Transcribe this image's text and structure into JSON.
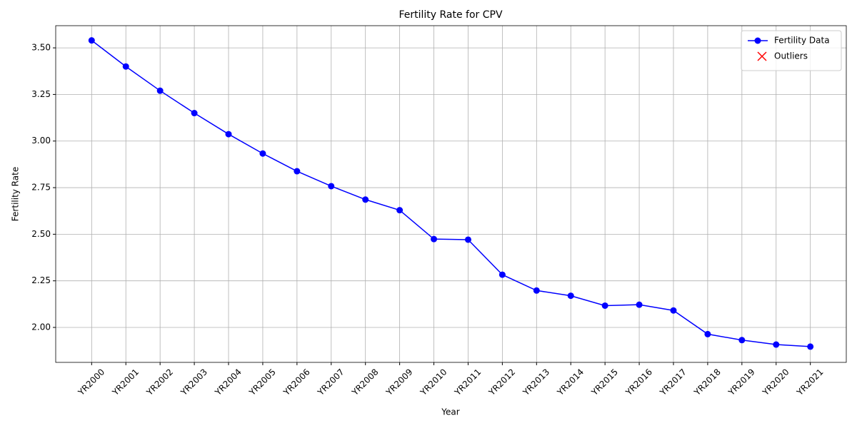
{
  "chart_data": {
    "type": "line",
    "title": "Fertility Rate for CPV",
    "xlabel": "Year",
    "ylabel": "Fertility Rate",
    "categories": [
      "YR2000",
      "YR2001",
      "YR2002",
      "YR2003",
      "YR2004",
      "YR2005",
      "YR2006",
      "YR2007",
      "YR2008",
      "YR2009",
      "YR2010",
      "YR2011",
      "YR2012",
      "YR2013",
      "YR2014",
      "YR2015",
      "YR2016",
      "YR2017",
      "YR2018",
      "YR2019",
      "YR2020",
      "YR2021"
    ],
    "series": [
      {
        "name": "Fertility Data",
        "color": "#0000ff",
        "marker": "o",
        "values": [
          3.54,
          3.4,
          3.27,
          3.15,
          3.037,
          2.933,
          2.838,
          2.758,
          2.686,
          2.629,
          2.474,
          2.471,
          2.283,
          2.198,
          2.17,
          2.117,
          2.122,
          2.091,
          1.964,
          1.932,
          1.908,
          1.897
        ]
      },
      {
        "name": "Outliers",
        "color": "#ff0000",
        "marker": "x",
        "values": [
          null,
          null,
          null,
          null,
          null,
          null,
          null,
          null,
          null,
          null,
          null,
          null,
          null,
          null,
          null,
          null,
          null,
          null,
          null,
          null,
          null,
          null
        ]
      }
    ],
    "ylim": [
      1.8125,
      3.619
    ],
    "yticks": [
      {
        "value": 2.0,
        "label": "2.00"
      },
      {
        "value": 2.25,
        "label": "2.25"
      },
      {
        "value": 2.5,
        "label": "2.50"
      },
      {
        "value": 2.75,
        "label": "2.75"
      },
      {
        "value": 3.0,
        "label": "3.00"
      },
      {
        "value": 3.25,
        "label": "3.25"
      },
      {
        "value": 3.5,
        "label": "3.50"
      }
    ],
    "grid": true,
    "legend": "upper right"
  }
}
